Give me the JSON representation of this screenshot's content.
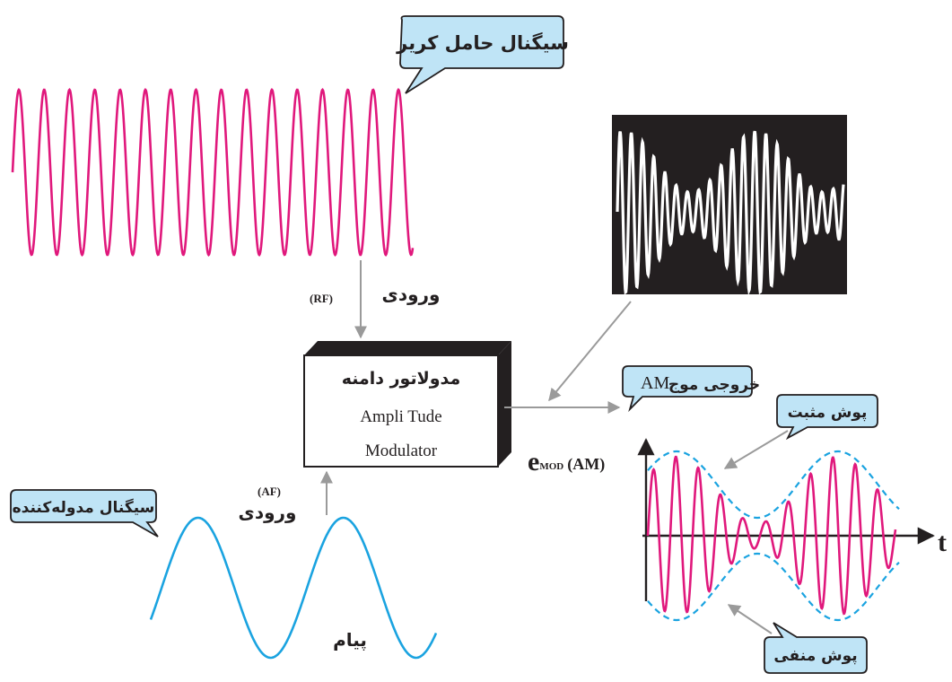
{
  "labels": {
    "carrier": "سیگنال حامل کریر",
    "modulating": "سیگنال مدوله‌کننده",
    "message": "پیام",
    "input_rf_word": "ورودی",
    "input_rf_tag": "(RF)",
    "input_af_word": "ورودی",
    "input_af_tag": "(AF)",
    "modulator_fa": "مدولاتور دامنه",
    "modulator_en_1": "Ampli Tude",
    "modulator_en_2": "Modulator",
    "output_fa": "خروجی موج",
    "output_en": "AM",
    "positive_env": "پوش مثبت",
    "negative_env": "پوش منفی",
    "y_axis_e": "e",
    "y_axis_sub": "MOD",
    "y_axis_tail": "(AM)",
    "t_axis": "t"
  },
  "colors": {
    "carrier": "#e0187c",
    "message": "#1aa3e0",
    "callout_fill": "#bfe4f6",
    "arrow": "#9a9a9a",
    "scope_bg": "#231f20",
    "text": "#231f20"
  }
}
